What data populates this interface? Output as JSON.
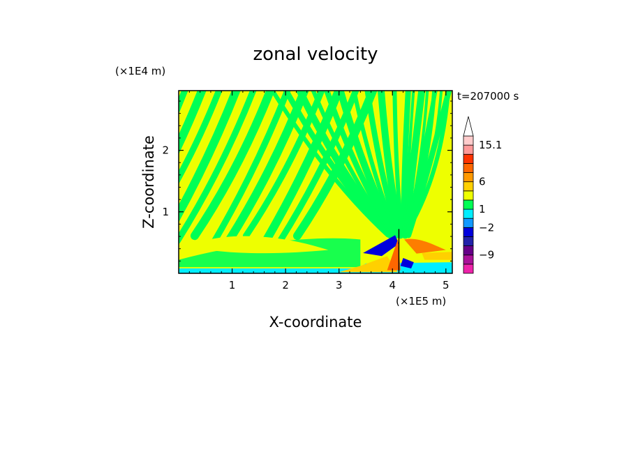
{
  "chart_data": {
    "type": "heatmap",
    "title": "zonal velocity",
    "xlabel": "X-coordinate",
    "ylabel": "Z-coordinate",
    "x_scale_label": "(×1E5 m)",
    "y_scale_label": "(×1E4 m)",
    "time_label": "t=207000 s",
    "xlim": [
      0,
      5.12
    ],
    "ylim": [
      0,
      2.97
    ],
    "x_ticks": [
      1,
      2,
      3,
      4,
      5
    ],
    "y_ticks": [
      1,
      2
    ],
    "colorbar": {
      "tick_labels": [
        "15.1",
        "6",
        "1",
        "−2",
        "−9"
      ],
      "levels": [
        {
          "color": "#ee22aa"
        },
        {
          "color": "#aa1199"
        },
        {
          "color": "#660088"
        },
        {
          "color": "#2222aa"
        },
        {
          "color": "#0000dd"
        },
        {
          "color": "#1199ff"
        },
        {
          "color": "#00eeff"
        },
        {
          "color": "#00ff55"
        },
        {
          "color": "#eeff00"
        },
        {
          "color": "#ffd000"
        },
        {
          "color": "#ff9900"
        },
        {
          "color": "#ff6600"
        },
        {
          "color": "#ff3300"
        },
        {
          "color": "#ff9999"
        },
        {
          "color": "#ffcccc"
        },
        {
          "color": "#ffffff"
        }
      ]
    },
    "field_colors": {
      "background_positive": "#eeff00",
      "band_negative": "#00ff55",
      "near_surface": "#00eeff",
      "strong_negative": "#0000dd",
      "strong_positive": "#ff6600",
      "moderate_positive": "#ffd000"
    }
  }
}
